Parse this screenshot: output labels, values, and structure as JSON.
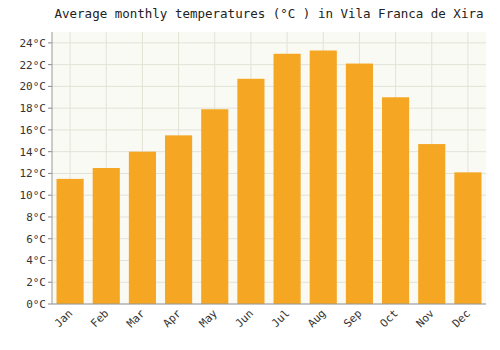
{
  "chart_data": {
    "type": "bar",
    "title": "Average monthly temperatures (°C ) in Vila Franca de Xira",
    "categories": [
      "Jan",
      "Feb",
      "Mar",
      "Apr",
      "May",
      "Jun",
      "Jul",
      "Aug",
      "Sep",
      "Oct",
      "Nov",
      "Dec"
    ],
    "values": [
      11.5,
      12.5,
      14.0,
      15.5,
      17.9,
      20.7,
      23.0,
      23.3,
      22.1,
      19.0,
      14.7,
      12.1
    ],
    "color": "#F5A623",
    "ylim": [
      0,
      25
    ],
    "yticks": [
      {
        "value": 0,
        "label": "0°C"
      },
      {
        "value": 2,
        "label": "2°C"
      },
      {
        "value": 4,
        "label": "4°C"
      },
      {
        "value": 6,
        "label": "6°C"
      },
      {
        "value": 8,
        "label": "8°C"
      },
      {
        "value": 10,
        "label": "10°C"
      },
      {
        "value": 12,
        "label": "12°C"
      },
      {
        "value": 14,
        "label": "14°C"
      },
      {
        "value": 16,
        "label": "16°C"
      },
      {
        "value": 18,
        "label": "18°C"
      },
      {
        "value": 20,
        "label": "20°C"
      },
      {
        "value": 22,
        "label": "22°C"
      },
      {
        "value": 24,
        "label": "24°C"
      }
    ],
    "grid": true
  }
}
